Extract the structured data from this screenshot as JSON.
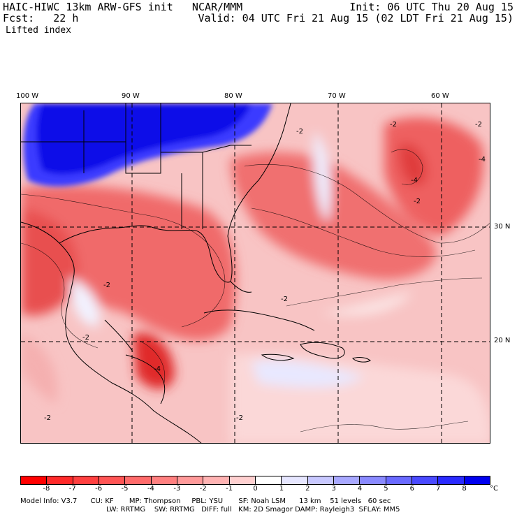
{
  "header": {
    "model_line": "HAIC-HIWC 13km ARW-GFS init   NCAR/MMM",
    "fcst_line": "Fcst:   22 h",
    "init_line": "Init: 06 UTC Thu 20 Aug 15",
    "valid_line": "Valid: 04 UTC Fri 21 Aug 15 (02 LDT Fri 21 Aug 15)",
    "field_name": "Lifted index"
  },
  "map": {
    "lon_labels": [
      "100 W",
      "90 W",
      "80 W",
      "70 W",
      "60 W"
    ],
    "lat_labels": [
      "30 N",
      "20 N"
    ],
    "contour_labels": [
      "-2",
      "-2",
      "-2",
      "-4",
      "-4",
      "-2",
      "-2",
      "-2",
      "-2",
      "-2",
      "-4",
      "-2"
    ]
  },
  "colorbar": {
    "unit": "°C",
    "labels": [
      "-8",
      "-7",
      "-6",
      "-5",
      "-4",
      "-3",
      "-2",
      "-1",
      "0",
      "1",
      "2",
      "3",
      "4",
      "5",
      "6",
      "7",
      "8"
    ],
    "colors": [
      "#ff0000",
      "#ff2a2a",
      "#ff4040",
      "#ff5555",
      "#ff6b6b",
      "#ff8080",
      "#ff9a9a",
      "#ffb3b3",
      "#ffd0d0",
      "#ffffff",
      "#e6e6ff",
      "#c8c8ff",
      "#a8a8ff",
      "#8a8aff",
      "#6a6aff",
      "#4a4aff",
      "#2a2aff",
      "#0000f0"
    ]
  },
  "footer": {
    "line1": "Model Info: V3.7      CU: KF       MP: Thompson     PBL: YSU       SF: Noah LSM      13 km    51 levels   60 sec",
    "line2": "LW: RRTMG    SW: RRTMG   DIFF: full   KM: 2D Smagor DAMP: Rayleigh3  SFLAY: MM5"
  }
}
